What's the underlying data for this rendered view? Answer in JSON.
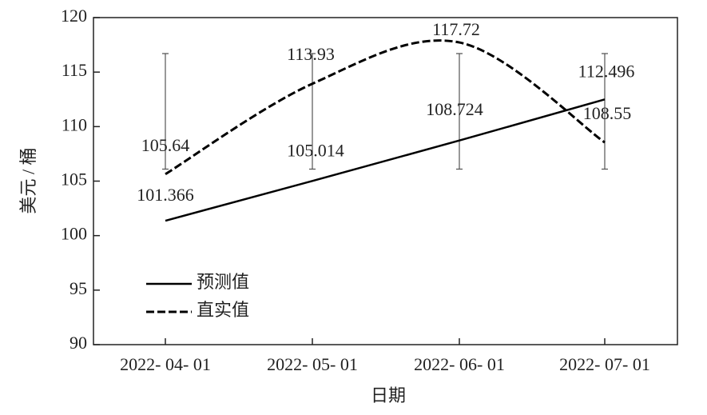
{
  "chart_data": {
    "type": "line",
    "x_label": "日期",
    "y_label": "美元 / 桶",
    "categories": [
      "2022- 04- 01",
      "2022- 05- 01",
      "2022- 06- 01",
      "2022- 07- 01"
    ],
    "series": [
      {
        "name": "预测值",
        "color": "#000000",
        "style": "solid",
        "smooth": false,
        "values": [
          101.366,
          105.014,
          108.724,
          112.496
        ]
      },
      {
        "name": "直实值",
        "color": "#000000",
        "style": "dashed",
        "smooth": true,
        "values": [
          105.64,
          113.93,
          117.72,
          108.55
        ]
      }
    ],
    "error_bars": {
      "low": [
        106.1,
        106.1,
        106.1,
        106.1
      ],
      "high": [
        116.7,
        116.7,
        116.7,
        116.7
      ]
    },
    "ylim": [
      90,
      120
    ],
    "yticks": [
      90,
      95,
      100,
      105,
      110,
      115,
      120
    ],
    "legend": "lower-left",
    "grid": false
  }
}
